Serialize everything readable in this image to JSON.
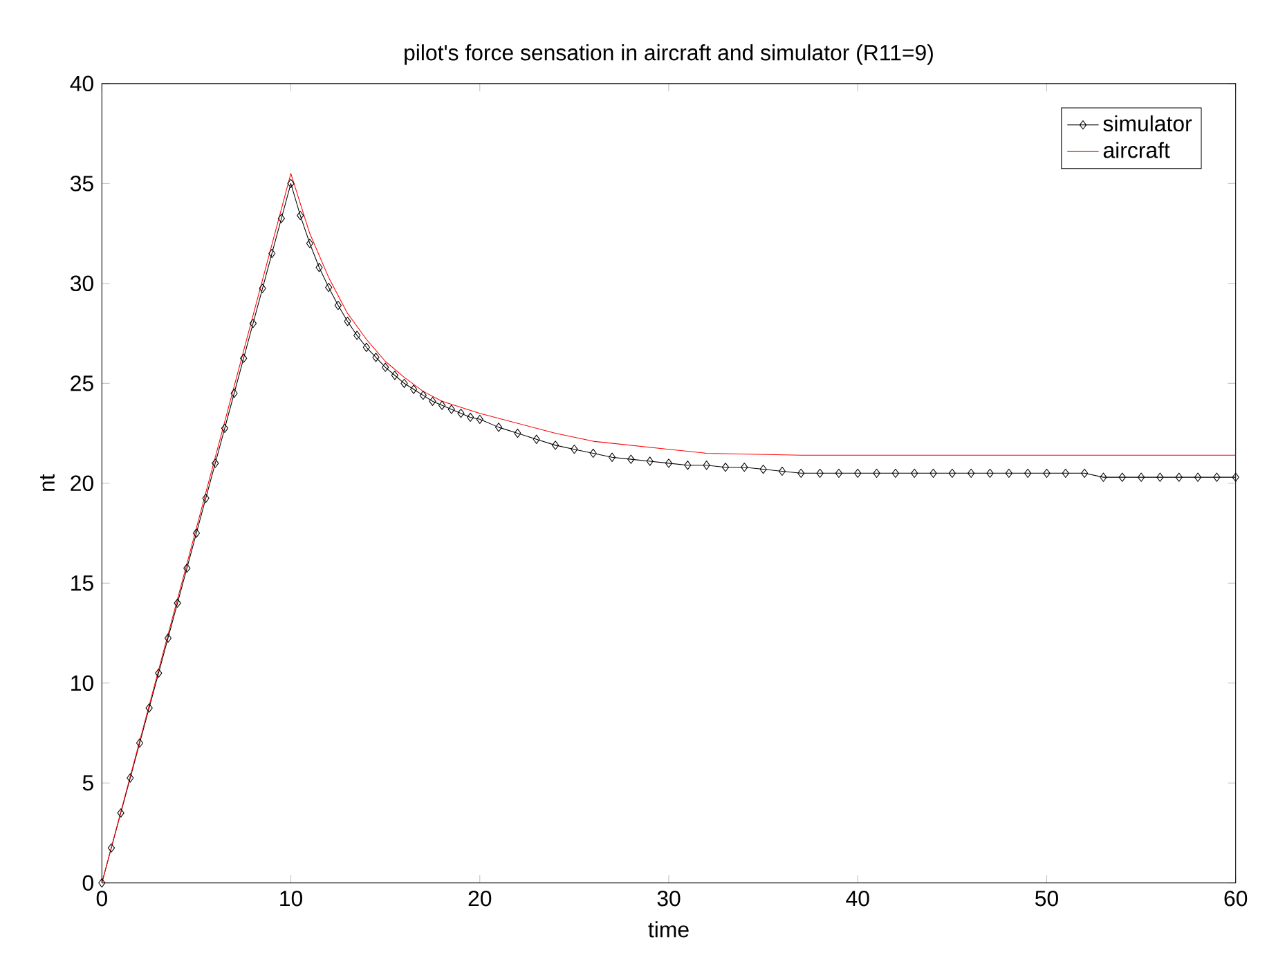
{
  "chart_data": {
    "type": "line",
    "title": "pilot's  force sensation in aircraft and simulator (R11=9)",
    "xlabel": "time",
    "ylabel": "nt",
    "xlim": [
      0,
      60
    ],
    "ylim": [
      0,
      40
    ],
    "xticks": [
      0,
      10,
      20,
      30,
      40,
      50,
      60
    ],
    "yticks": [
      0,
      5,
      10,
      15,
      20,
      25,
      30,
      35,
      40
    ],
    "grid": false,
    "legend": "top right",
    "series": [
      {
        "name": "simulator",
        "color": "#000000",
        "marker": "diamond",
        "x": [
          0,
          0.5,
          1,
          1.5,
          2,
          2.5,
          3,
          3.5,
          4,
          4.5,
          5,
          5.5,
          6,
          6.5,
          7,
          7.5,
          8,
          8.5,
          9,
          9.5,
          10,
          10.5,
          11,
          11.5,
          12,
          12.5,
          13,
          13.5,
          14,
          14.5,
          15,
          15.5,
          16,
          16.5,
          17,
          17.5,
          18,
          18.5,
          19,
          19.5,
          20,
          21,
          22,
          23,
          24,
          25,
          26,
          27,
          28,
          29,
          30,
          31,
          32,
          33,
          34,
          35,
          36,
          37,
          38,
          39,
          40,
          41,
          42,
          43,
          44,
          45,
          46,
          47,
          48,
          49,
          50,
          51,
          52,
          53,
          54,
          55,
          56,
          57,
          58,
          59,
          60
        ],
        "values": [
          0,
          1.75,
          3.5,
          5.25,
          7,
          8.75,
          10.5,
          12.25,
          14,
          15.75,
          17.5,
          19.25,
          21,
          22.75,
          24.5,
          26.25,
          28,
          29.75,
          31.5,
          33.25,
          35,
          33.4,
          32.0,
          30.8,
          29.8,
          28.9,
          28.1,
          27.4,
          26.8,
          26.3,
          25.8,
          25.4,
          25.0,
          24.7,
          24.4,
          24.1,
          23.9,
          23.7,
          23.5,
          23.3,
          23.2,
          22.8,
          22.5,
          22.2,
          21.9,
          21.7,
          21.5,
          21.3,
          21.2,
          21.1,
          21.0,
          20.9,
          20.9,
          20.8,
          20.8,
          20.7,
          20.6,
          20.5,
          20.5,
          20.5,
          20.5,
          20.5,
          20.5,
          20.5,
          20.5,
          20.5,
          20.5,
          20.5,
          20.5,
          20.5,
          20.5,
          20.5,
          20.5,
          20.3,
          20.3,
          20.3,
          20.3,
          20.3,
          20.3,
          20.3,
          20.3
        ]
      },
      {
        "name": "aircraft",
        "color": "#ff0000",
        "marker": "none",
        "x": [
          0,
          10,
          11,
          12,
          13,
          14,
          15,
          16,
          17,
          18,
          19,
          20,
          22,
          24,
          26,
          28,
          30,
          32,
          37,
          60
        ],
        "values": [
          0,
          35.5,
          32.5,
          30.3,
          28.5,
          27.2,
          26.1,
          25.3,
          24.6,
          24.1,
          23.8,
          23.5,
          23.0,
          22.5,
          22.1,
          21.9,
          21.7,
          21.5,
          21.4,
          21.4
        ]
      }
    ]
  }
}
